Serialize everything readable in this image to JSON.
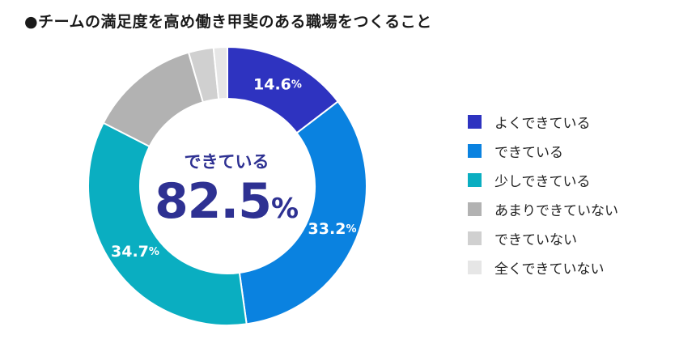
{
  "chart_data": {
    "type": "pie",
    "title": "●チームの満足度を高め働き甲斐のある職場をつくること",
    "center_caption": "できている",
    "center_value": "82.5",
    "center_unit": "%",
    "series": [
      {
        "name": "よくできている",
        "value": 14.6,
        "color": "#2e33c0",
        "label": "14.6"
      },
      {
        "name": "できている",
        "value": 33.2,
        "color": "#0a82e0",
        "label": "33.2"
      },
      {
        "name": "少しできている",
        "value": 34.7,
        "color": "#0aaec1",
        "label": "34.7"
      },
      {
        "name": "あまりできていない",
        "value": 13.0,
        "color": "#b2b2b2",
        "label": ""
      },
      {
        "name": "できていない",
        "value": 2.9,
        "color": "#d0d0d0",
        "label": ""
      },
      {
        "name": "全くできていない",
        "value": 1.6,
        "color": "#e6e6e6",
        "label": ""
      }
    ],
    "unit_suffix": "%",
    "legend_position": "right"
  }
}
